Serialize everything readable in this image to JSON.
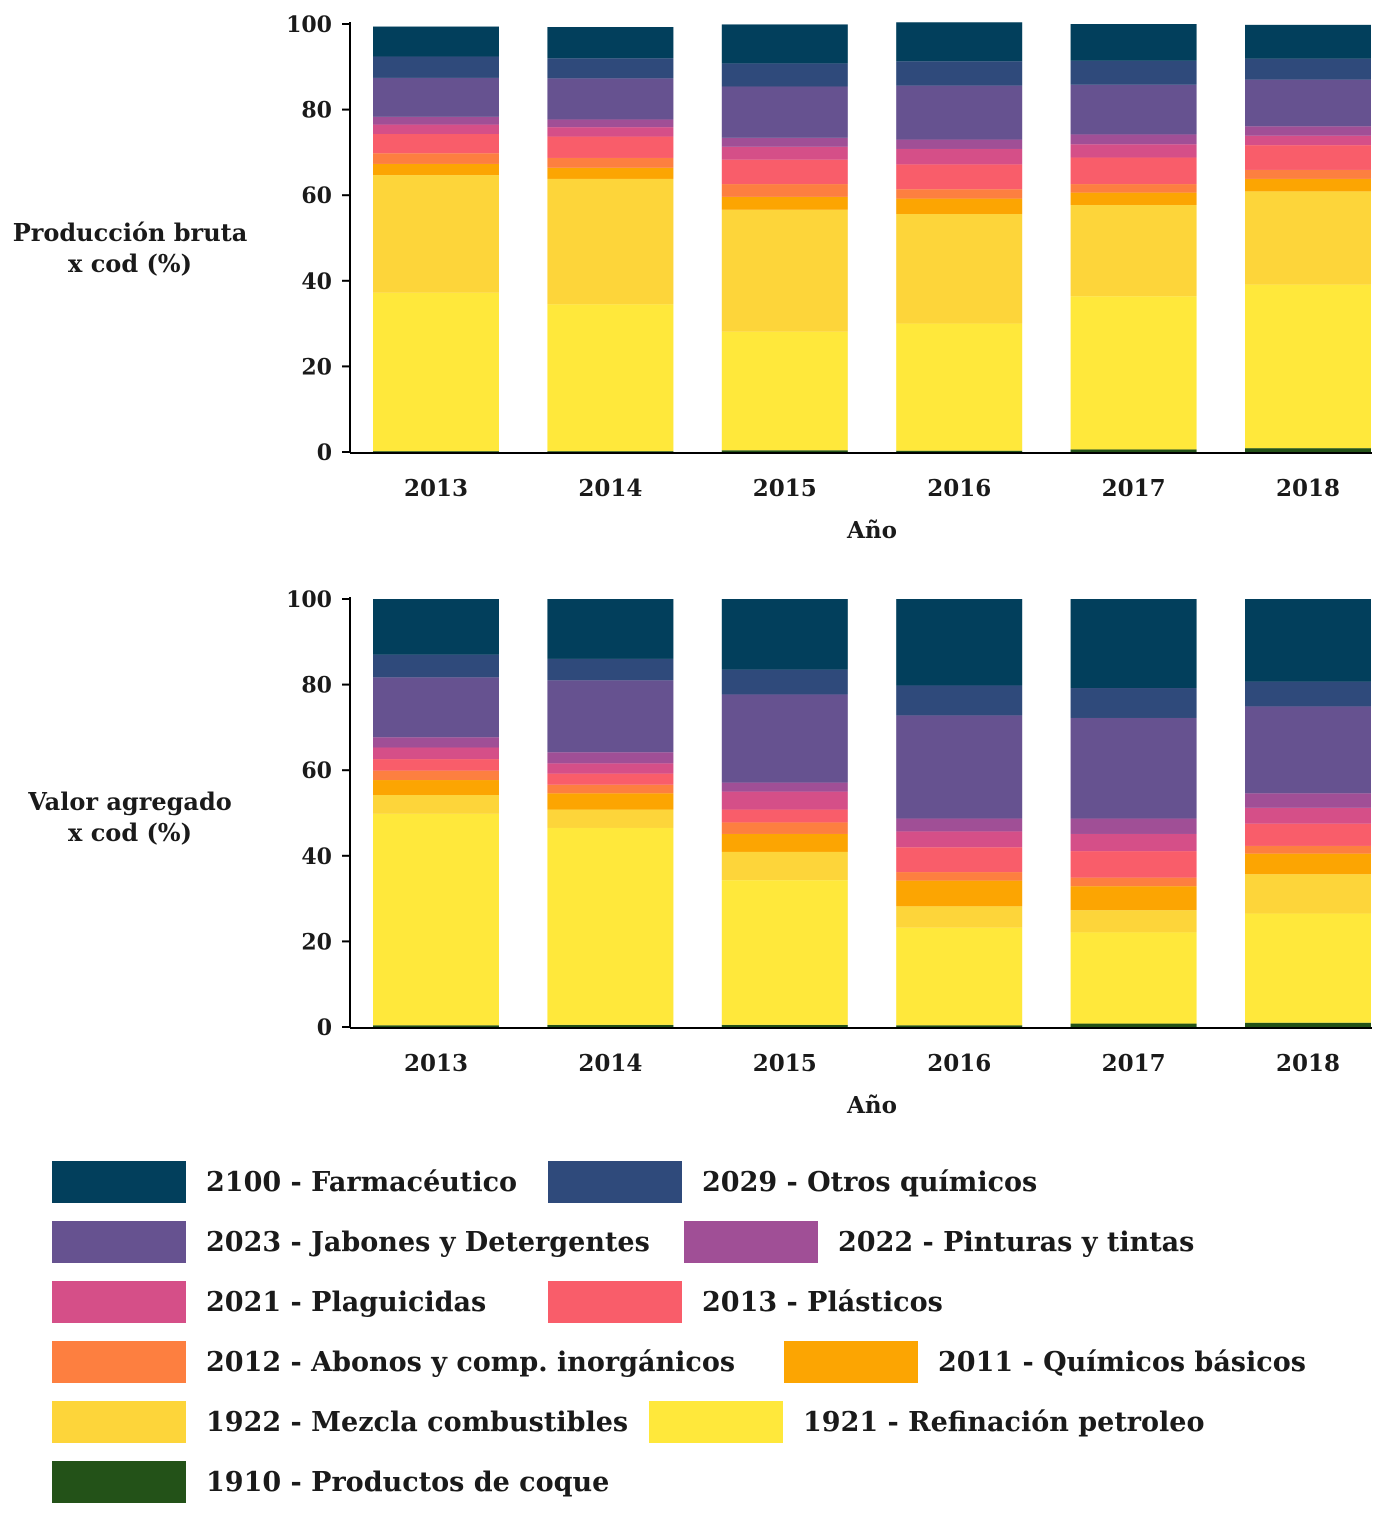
{
  "chart_data": [
    {
      "type": "bar",
      "stacked": true,
      "ylabel": "Producción bruta\nx cod (%)",
      "xlabel": "Año",
      "ylim": [
        0,
        100
      ],
      "yticks": [
        0,
        20,
        40,
        60,
        80,
        100
      ],
      "categories": [
        "2013",
        "2014",
        "2015",
        "2016",
        "2017",
        "2018"
      ],
      "series": [
        {
          "name": "1910 - Productos de coque",
          "values": [
            0.2,
            0.2,
            0.4,
            0.3,
            0.6,
            0.9
          ]
        },
        {
          "name": "1921 - Refinación petroleo",
          "values": [
            37.0,
            34.3,
            27.7,
            29.7,
            35.8,
            38.2
          ]
        },
        {
          "name": "1922 - Mezcla combustibles",
          "values": [
            27.5,
            29.3,
            28.5,
            25.6,
            21.3,
            21.8
          ]
        },
        {
          "name": "2011 - Químicos básicos",
          "values": [
            2.6,
            2.6,
            3.0,
            3.6,
            2.9,
            2.9
          ]
        },
        {
          "name": "2012 - Abonos y comp. inorgánicos",
          "values": [
            2.5,
            2.3,
            3.0,
            2.2,
            2.0,
            2.1
          ]
        },
        {
          "name": "2013 - Plásticos",
          "values": [
            4.5,
            5.0,
            5.7,
            5.8,
            6.2,
            5.8
          ]
        },
        {
          "name": "2021 - Plaguicidas",
          "values": [
            2.2,
            2.2,
            3.0,
            3.6,
            3.1,
            2.2
          ]
        },
        {
          "name": "2022 - Pinturas y tintas",
          "values": [
            1.8,
            1.8,
            2.1,
            2.2,
            2.3,
            2.2
          ]
        },
        {
          "name": "2023 - Jabones y Detergentes",
          "values": [
            9.1,
            9.6,
            12.0,
            12.6,
            11.6,
            10.9
          ]
        },
        {
          "name": "2029 - Otros químicos",
          "values": [
            5.0,
            4.7,
            5.4,
            5.7,
            5.6,
            4.9
          ]
        },
        {
          "name": "2100 - Farmacéutico",
          "values": [
            7.0,
            7.3,
            9.1,
            9.1,
            8.6,
            7.9
          ]
        }
      ]
    },
    {
      "type": "bar",
      "stacked": true,
      "ylabel": "Valor agregado\nx cod (%)",
      "xlabel": "Año",
      "ylim": [
        0,
        100
      ],
      "yticks": [
        0,
        20,
        40,
        60,
        80,
        100
      ],
      "categories": [
        "2013",
        "2014",
        "2015",
        "2016",
        "2017",
        "2018"
      ],
      "series": [
        {
          "name": "1910 - Productos de coque",
          "values": [
            0.4,
            0.5,
            0.5,
            0.4,
            0.8,
            1.0
          ]
        },
        {
          "name": "1921 - Refinación petroleo",
          "values": [
            49.4,
            46.0,
            33.8,
            22.8,
            21.3,
            25.5
          ]
        },
        {
          "name": "1922 - Mezcla combustibles",
          "values": [
            4.4,
            4.3,
            6.6,
            5.0,
            5.2,
            9.2
          ]
        },
        {
          "name": "2011 - Químicos básicos",
          "values": [
            3.5,
            3.8,
            4.2,
            6.0,
            5.6,
            4.8
          ]
        },
        {
          "name": "2012 - Abonos y comp. inorgánicos",
          "values": [
            2.2,
            2.0,
            2.7,
            2.0,
            2.0,
            1.8
          ]
        },
        {
          "name": "2013 - Plásticos",
          "values": [
            2.7,
            2.6,
            3.0,
            5.8,
            6.2,
            5.2
          ]
        },
        {
          "name": "2021 - Plaguicidas",
          "values": [
            2.7,
            2.4,
            4.2,
            3.7,
            4.0,
            3.7
          ]
        },
        {
          "name": "2022 - Pinturas y tintas",
          "values": [
            2.4,
            2.6,
            2.1,
            3.0,
            3.6,
            3.4
          ]
        },
        {
          "name": "2023 - Jabones y Detergentes",
          "values": [
            14.0,
            16.8,
            20.6,
            24.1,
            23.5,
            20.3
          ]
        },
        {
          "name": "2029 - Otros químicos",
          "values": [
            5.3,
            5.0,
            5.8,
            7.0,
            7.0,
            5.8
          ]
        },
        {
          "name": "2100 - Farmacéutico",
          "values": [
            13.0,
            14.0,
            16.5,
            20.2,
            20.8,
            19.3
          ]
        }
      ]
    }
  ],
  "colors": {
    "1910 - Productos de coque": "#235218",
    "1921 - Refinación petroleo": "#ffe83b",
    "1922 - Mezcla combustibles": "#fdd53a",
    "2011 - Químicos básicos": "#fca502",
    "2012 - Abonos y comp. inorgánicos": "#fd7f40",
    "2013 - Plásticos": "#f95d6a",
    "2021 - Plaguicidas": "#d54f88",
    "2022 - Pinturas y tintas": "#a04f96",
    "2023 - Jabones y Detergentes": "#665290",
    "2029 - Otros químicos": "#2f4a7b",
    "2100 - Farmacéutico": "#023f5c"
  },
  "legend": {
    "placement": "bottom",
    "rows": [
      [
        "2100 - Farmacéutico",
        "2029 - Otros químicos"
      ],
      [
        "2023 - Jabones y Detergentes",
        "2022 - Pinturas y tintas"
      ],
      [
        "2021 - Plaguicidas",
        "2013 - Plásticos"
      ],
      [
        "2012 - Abonos y comp. inorgánicos",
        "2011 - Químicos básicos"
      ],
      [
        "1922 - Mezcla combustibles",
        "1921 - Refinación petroleo"
      ],
      [
        "1910 - Productos de coque"
      ]
    ]
  }
}
